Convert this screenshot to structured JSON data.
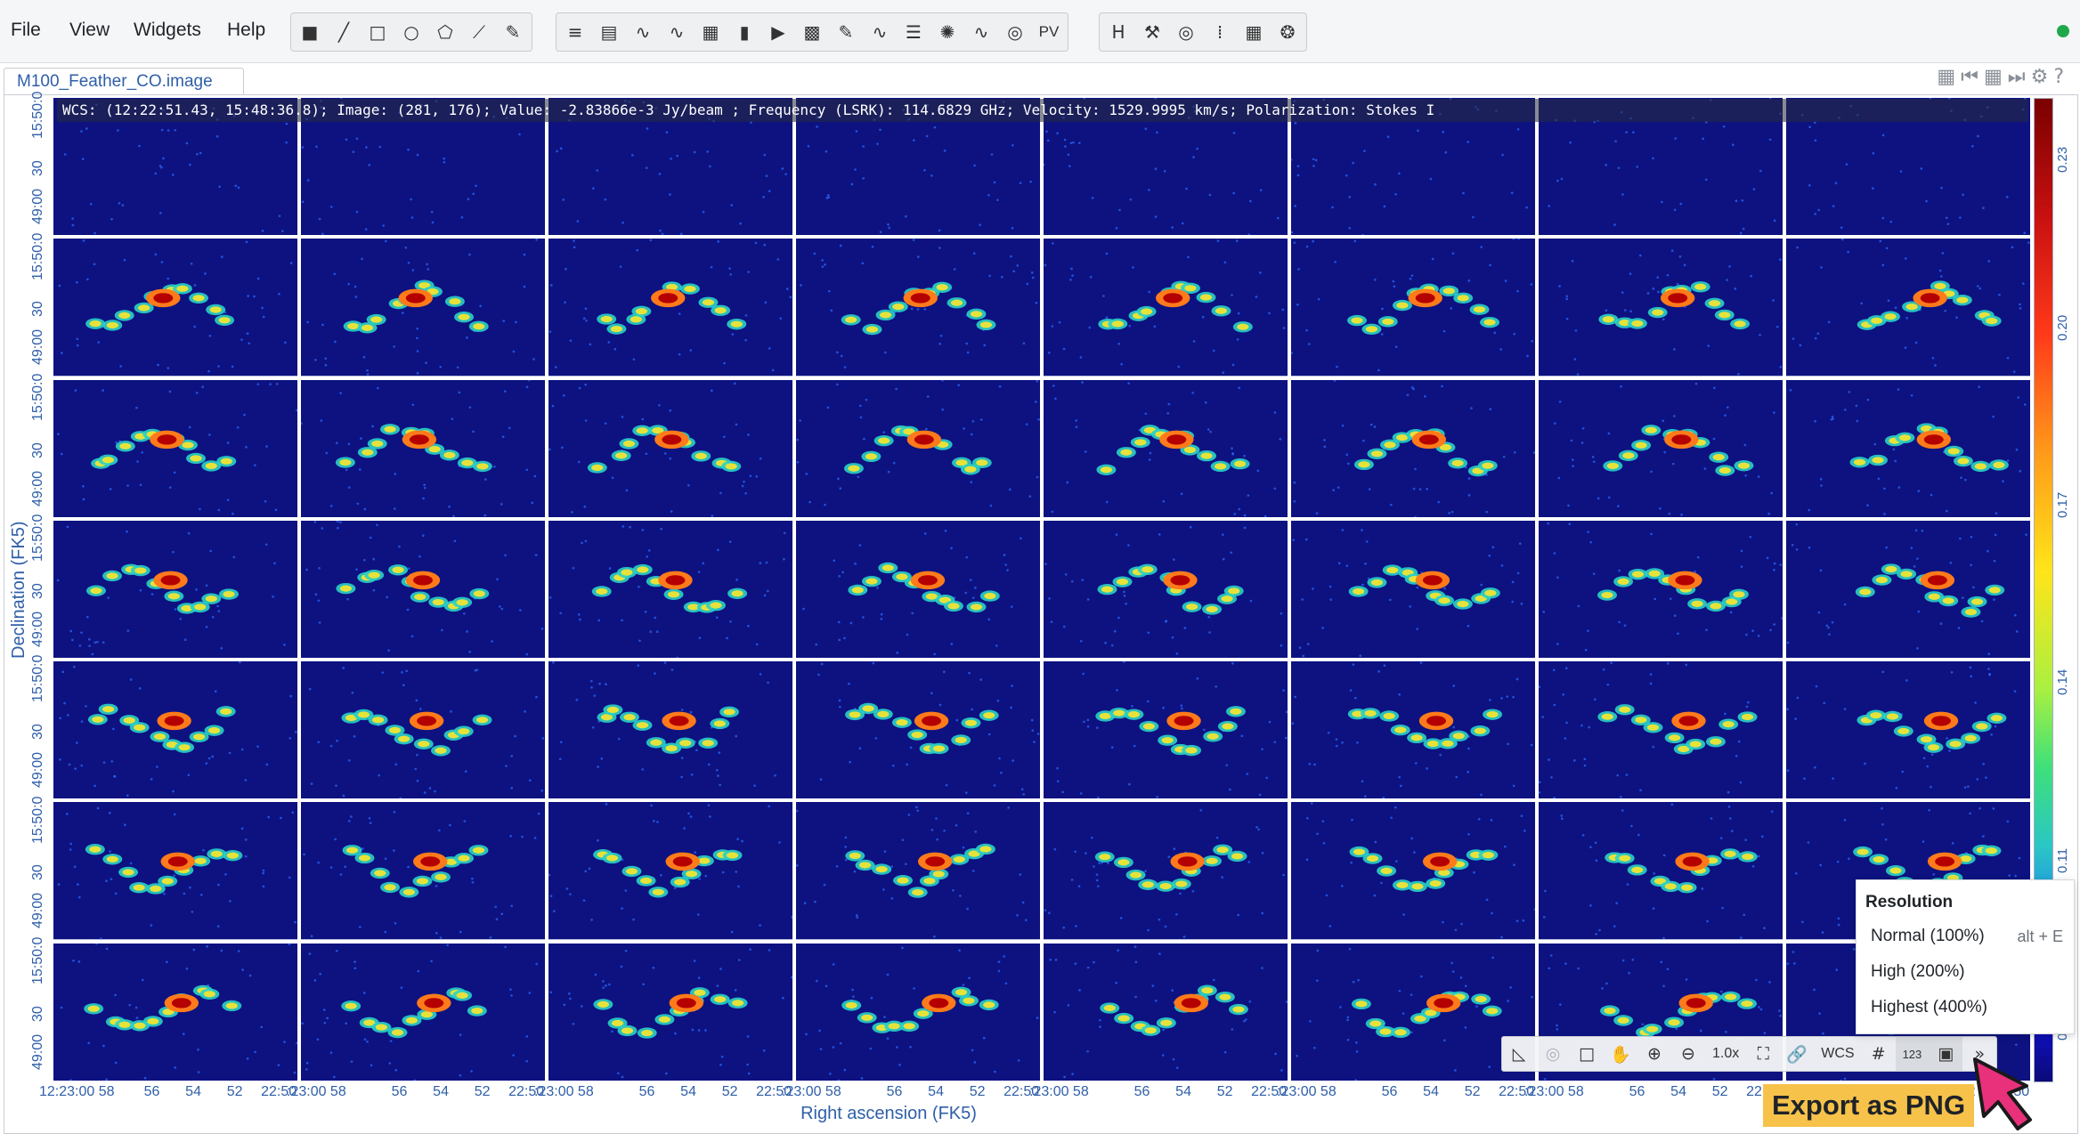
{
  "menu": {
    "items": [
      "File",
      "View",
      "Widgets",
      "Help"
    ]
  },
  "toolbar": {
    "region_tools": [
      "point-icon",
      "line-icon",
      "rectangle-icon",
      "ellipse-icon",
      "polygon-icon",
      "polyline-icon",
      "edit-region-icon"
    ],
    "widget_tools": [
      "region-list-icon",
      "image-info-icon",
      "spatial-profiler-icon",
      "spectral-profiler-icon",
      "statistics-icon",
      "histogram-icon",
      "animator-icon",
      "render-config-icon",
      "stokes-icon",
      "layers-icon",
      "catalog-icon",
      "spectral-line-icon",
      "fitting-icon"
    ],
    "pv_label": "PV",
    "utility_tools": [
      "header-icon",
      "settings-icon",
      "contour-icon",
      "vector-icon",
      "fitting-icon",
      "online-catalog-icon"
    ]
  },
  "tab": {
    "title": "M100_Feather_CO.image"
  },
  "cursor_info": "WCS: (12:22:51.43, 15:48:36.8); Image: (281, 176); Value: -2.83866e-3 Jy/beam ; Frequency (LSRK): 114.6829 GHz; Velocity: 1529.9995 km/s; Polarization: Stokes I",
  "axes": {
    "y_label": "Declination (FK5)",
    "x_label": "Right ascension (FK5)",
    "y_ticks": [
      "15:50:0",
      "30",
      "49:00"
    ],
    "x_ticks_first": [
      "12:23:00 58",
      "56",
      "54",
      "52",
      "22:50"
    ],
    "x_ticks_rest": [
      ":23:00 58",
      "56",
      "54",
      "52",
      "22:50"
    ]
  },
  "colorbar": {
    "ticks": [
      "0.23",
      "0.20",
      "0.17",
      "0.14",
      "0.11",
      "0.08"
    ]
  },
  "grid": {
    "rows": 7,
    "cols": 8,
    "active_row": 2,
    "active_col": 4
  },
  "image_toolbar": {
    "zoom_label": "1.0x",
    "coord_label": "WCS",
    "value_label": "123"
  },
  "resolution_menu": {
    "title": "Resolution",
    "items": [
      {
        "label": "Normal (100%)",
        "shortcut": "alt + E"
      },
      {
        "label": "High (200%)",
        "shortcut": ""
      },
      {
        "label": "Highest (400%)",
        "shortcut": ""
      }
    ]
  },
  "caption": "Export as PNG",
  "colors": {
    "background": "#0d1280",
    "active_border": "#e0483a",
    "axis_text": "#2f5fa8",
    "caption_bg": "#f6c24a",
    "status_ok": "#1fa84a"
  }
}
